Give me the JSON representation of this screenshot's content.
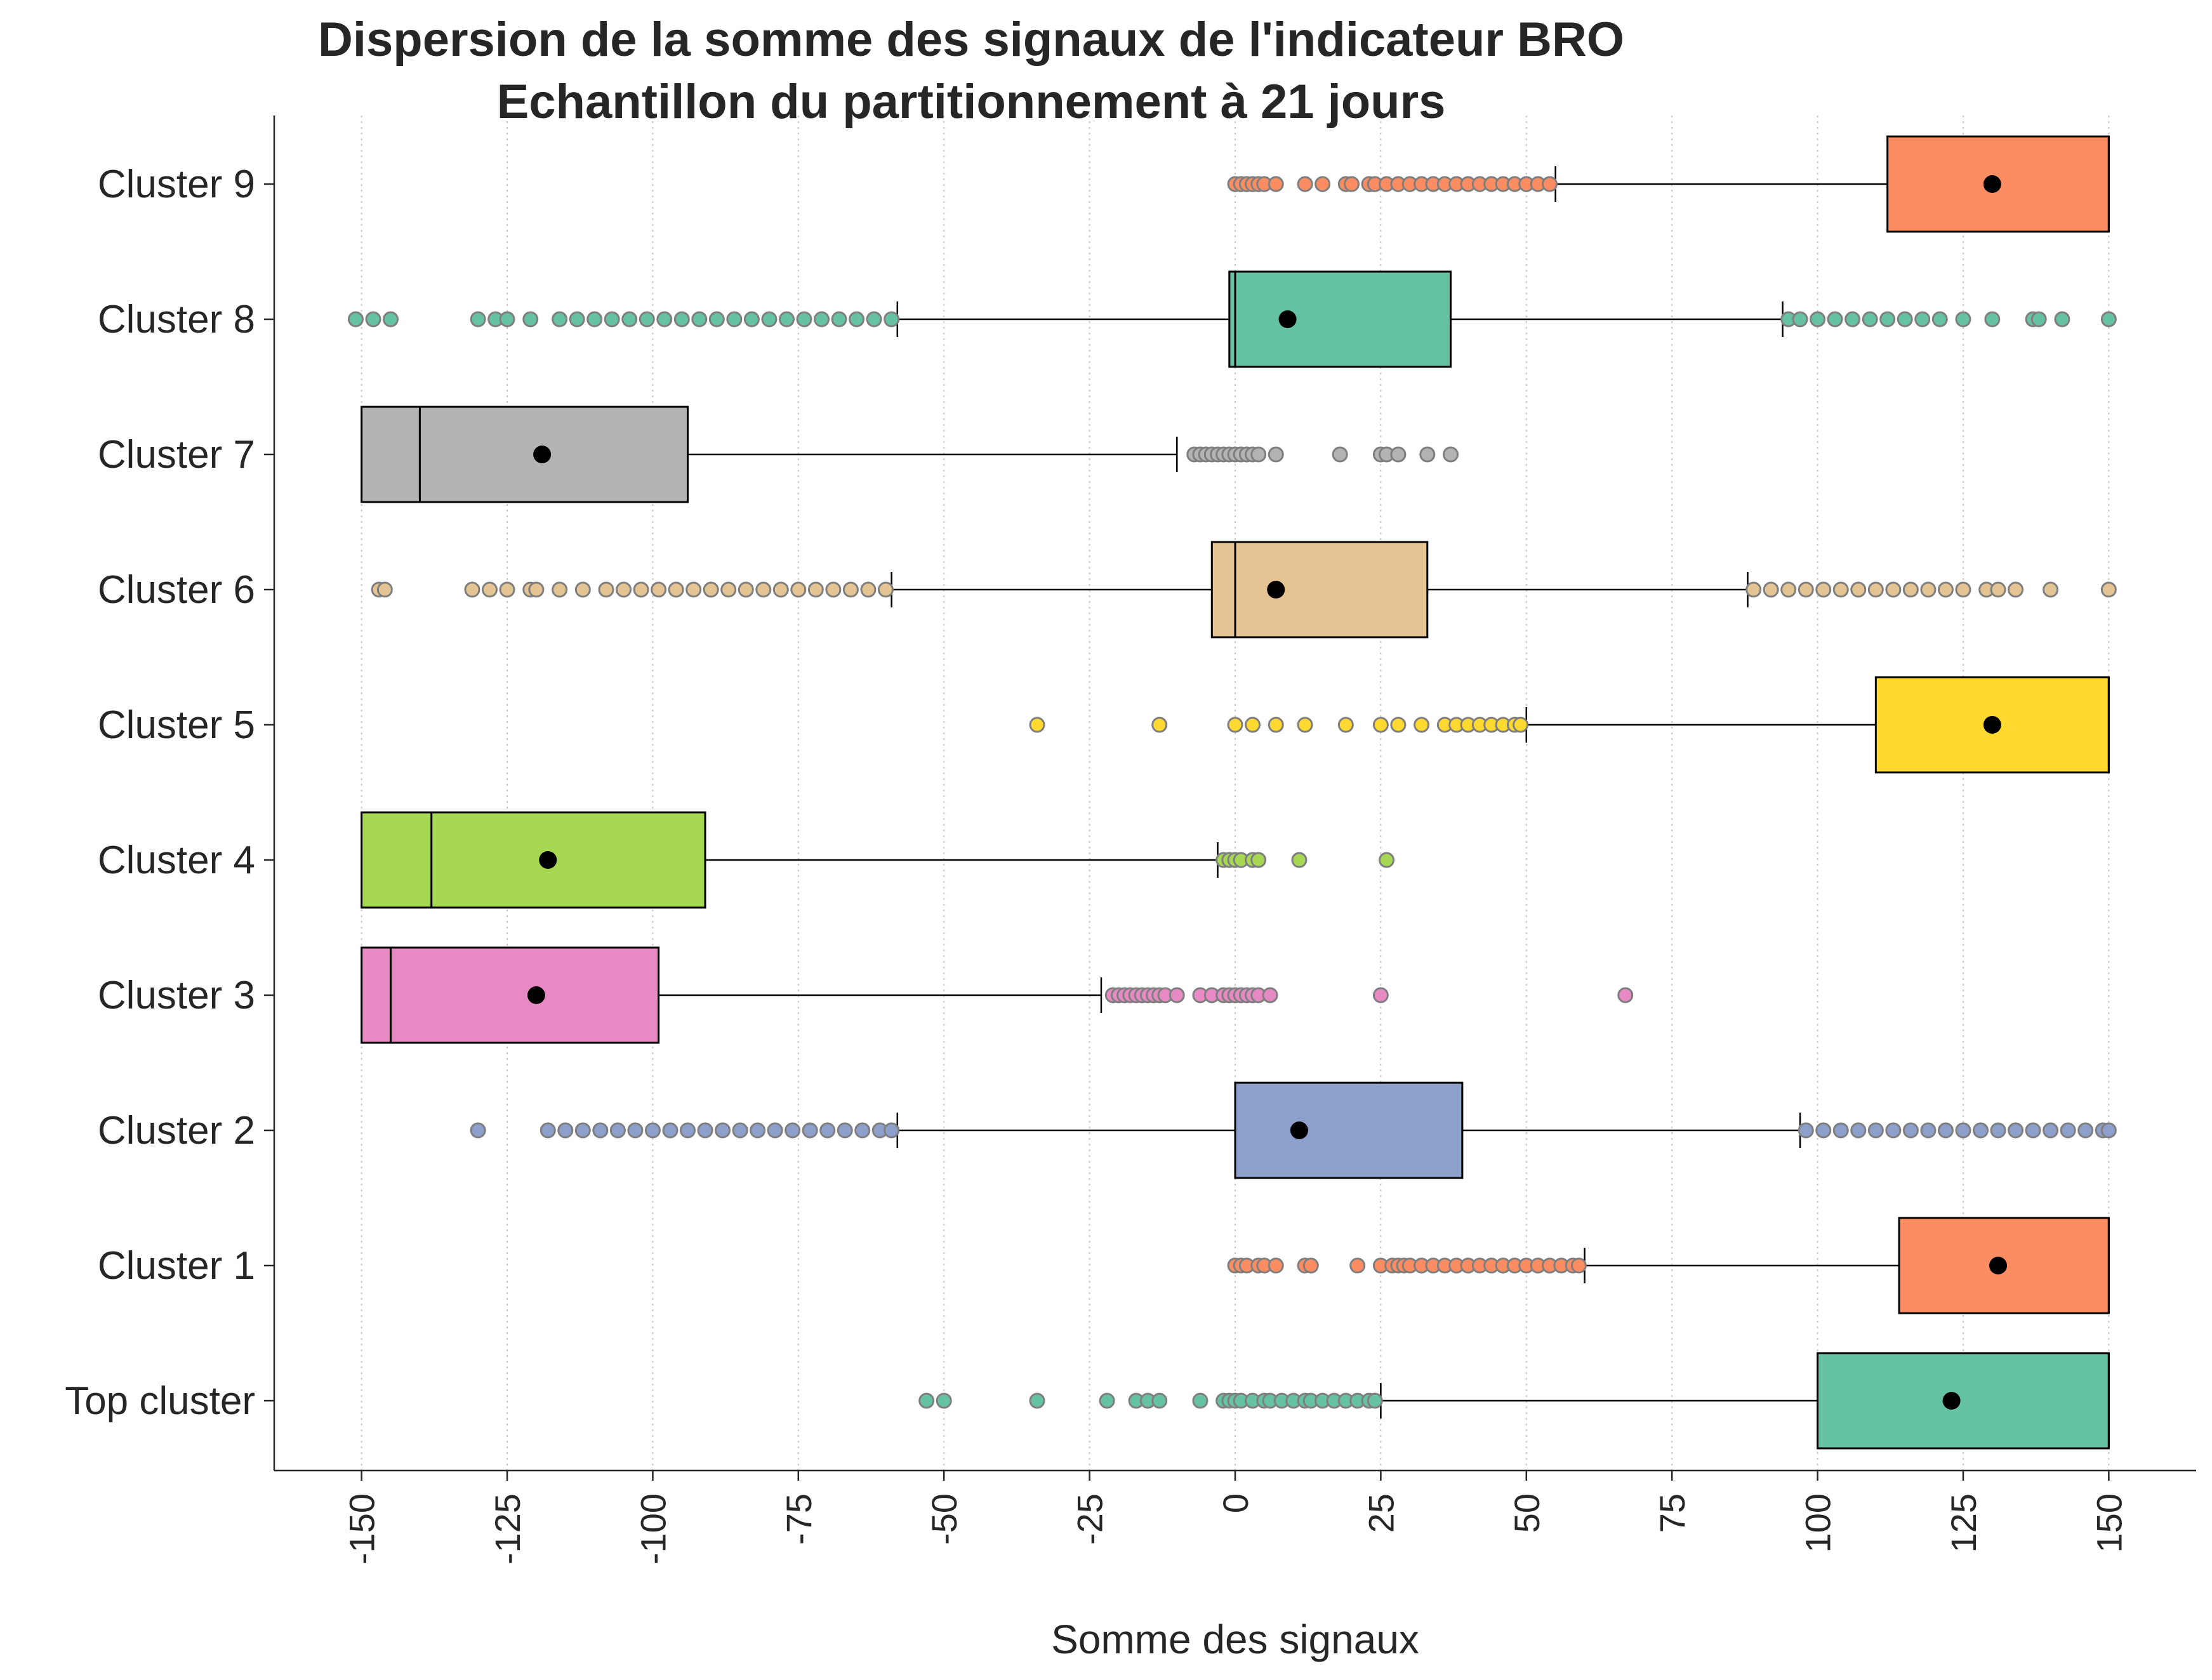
{
  "chart_data": {
    "type": "boxplot",
    "orientation": "horizontal",
    "title": "Dispersion de la somme des signaux de l'indicateur BRO",
    "subtitle": "Echantillon du partitionnement à 21 jours",
    "xlabel": "Somme des signaux",
    "ylabel": "",
    "xlim": [
      -165,
      165
    ],
    "xticks": [
      -150,
      -125,
      -100,
      -75,
      -50,
      -25,
      0,
      25,
      50,
      75,
      100,
      125,
      150
    ],
    "grid": "vertical-dotted",
    "mean_marker": "black dot",
    "categories": [
      "Cluster 9",
      "Cluster 8",
      "Cluster 7",
      "Cluster 6",
      "Cluster 5",
      "Cluster 4",
      "Cluster 3",
      "Cluster 2",
      "Cluster 1",
      "Top cluster"
    ],
    "series": [
      {
        "label": "Cluster 9",
        "color": "#fc8d62",
        "whisker_low": 55,
        "q1": 112,
        "median": 150,
        "q3": 150,
        "whisker_high": 150,
        "mean": 130,
        "outliers": [
          0,
          1,
          2,
          3,
          4,
          5,
          7,
          12,
          15,
          19,
          20,
          23,
          24,
          26,
          28,
          30,
          32,
          34,
          36,
          38,
          40,
          42,
          44,
          46,
          48,
          50,
          52,
          54
        ]
      },
      {
        "label": "Cluster 8",
        "color": "#66c2a5",
        "whisker_low": -58,
        "q1": -1,
        "median": 0,
        "q3": 37,
        "whisker_high": 94,
        "mean": 9,
        "outliers": [
          -151,
          -148,
          -145,
          -130,
          -127,
          -125,
          -121,
          -116,
          -113,
          -110,
          -107,
          -104,
          -101,
          -98,
          -95,
          -92,
          -89,
          -86,
          -83,
          -80,
          -77,
          -74,
          -71,
          -68,
          -65,
          -62,
          -59,
          95,
          97,
          100,
          103,
          106,
          109,
          112,
          115,
          118,
          121,
          125,
          130,
          137,
          138,
          142,
          150
        ]
      },
      {
        "label": "Cluster 7",
        "color": "#b3b3b3",
        "whisker_low": -150,
        "q1": -150,
        "median": -140,
        "q3": -94,
        "whisker_high": -10,
        "mean": -119,
        "outliers": [
          -7,
          -6,
          -5,
          -4,
          -3,
          -2,
          -1,
          0,
          1,
          2,
          3,
          4,
          7,
          18,
          25,
          26,
          28,
          33,
          37
        ]
      },
      {
        "label": "Cluster 6",
        "color": "#e5c494",
        "whisker_low": -59,
        "q1": -4,
        "median": 0,
        "q3": 33,
        "whisker_high": 88,
        "mean": 7,
        "outliers": [
          -147,
          -146,
          -131,
          -128,
          -125,
          -121,
          -120,
          -116,
          -112,
          -108,
          -105,
          -102,
          -99,
          -96,
          -93,
          -90,
          -87,
          -84,
          -81,
          -78,
          -75,
          -72,
          -69,
          -66,
          -63,
          -60,
          89,
          92,
          95,
          98,
          101,
          104,
          107,
          110,
          113,
          116,
          119,
          122,
          125,
          129,
          131,
          134,
          140,
          150
        ]
      },
      {
        "label": "Cluster 5",
        "color": "#ffd92f",
        "whisker_low": 50,
        "q1": 110,
        "median": 150,
        "q3": 150,
        "whisker_high": 150,
        "mean": 130,
        "outliers": [
          -34,
          -13,
          0,
          3,
          7,
          12,
          19,
          25,
          28,
          32,
          36,
          38,
          40,
          42,
          44,
          46,
          48,
          49
        ]
      },
      {
        "label": "Cluster 4",
        "color": "#a6d854",
        "whisker_low": -150,
        "q1": -150,
        "median": -138,
        "q3": -91,
        "whisker_high": -3,
        "mean": -118,
        "outliers": [
          -2,
          -1,
          0,
          1,
          3,
          4,
          11,
          26
        ]
      },
      {
        "label": "Cluster 3",
        "color": "#e78ac3",
        "whisker_low": -150,
        "q1": -150,
        "median": -145,
        "q3": -99,
        "whisker_high": -23,
        "mean": -120,
        "outliers": [
          -21,
          -20,
          -19,
          -18,
          -17,
          -16,
          -15,
          -14,
          -13,
          -12,
          -10,
          -6,
          -4,
          -2,
          -1,
          0,
          1,
          2,
          3,
          4,
          6,
          25,
          67
        ]
      },
      {
        "label": "Cluster 2",
        "color": "#8da0cb",
        "whisker_low": -58,
        "q1": 0,
        "median": 0,
        "q3": 39,
        "whisker_high": 97,
        "mean": 11,
        "outliers": [
          -130,
          -118,
          -115,
          -112,
          -109,
          -106,
          -103,
          -100,
          -97,
          -94,
          -91,
          -88,
          -85,
          -82,
          -79,
          -76,
          -73,
          -70,
          -67,
          -64,
          -61,
          -59,
          98,
          101,
          104,
          107,
          110,
          113,
          116,
          119,
          122,
          125,
          128,
          131,
          134,
          137,
          140,
          143,
          146,
          149,
          150
        ]
      },
      {
        "label": "Cluster 1",
        "color": "#fc8d62",
        "whisker_low": 60,
        "q1": 114,
        "median": 150,
        "q3": 150,
        "whisker_high": 150,
        "mean": 131,
        "outliers": [
          0,
          1,
          2,
          4,
          5,
          7,
          12,
          13,
          21,
          25,
          27,
          28,
          29,
          30,
          32,
          34,
          36,
          38,
          40,
          42,
          44,
          46,
          48,
          50,
          52,
          54,
          56,
          58,
          59
        ]
      },
      {
        "label": "Top cluster",
        "color": "#66c2a5",
        "whisker_low": 25,
        "q1": 100,
        "median": 150,
        "q3": 150,
        "whisker_high": 150,
        "mean": 123,
        "outliers": [
          -53,
          -50,
          -34,
          -22,
          -17,
          -15,
          -13,
          -6,
          -2,
          -1,
          0,
          1,
          3,
          5,
          6,
          8,
          10,
          12,
          13,
          15,
          17,
          19,
          21,
          23,
          24
        ]
      }
    ]
  }
}
